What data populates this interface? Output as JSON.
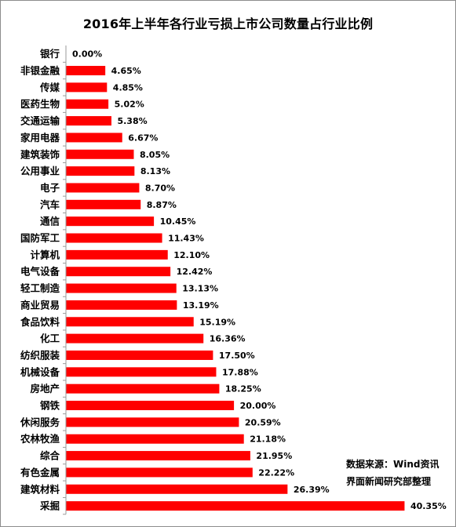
{
  "chart_data": {
    "type": "bar",
    "orientation": "horizontal",
    "title": "2016年上半年各行业亏损上市公司数量占行业比例",
    "categories": [
      "银行",
      "非银金融",
      "传媒",
      "医药生物",
      "交通运输",
      "家用电器",
      "建筑装饰",
      "公用事业",
      "电子",
      "汽车",
      "通信",
      "国防军工",
      "计算机",
      "电气设备",
      "轻工制造",
      "商业贸易",
      "食品饮料",
      "化工",
      "纺织服装",
      "机械设备",
      "房地产",
      "钢铁",
      "休闲服务",
      "农林牧渔",
      "综合",
      "有色金属",
      "建筑材料",
      "采掘"
    ],
    "values": [
      0.0,
      4.65,
      4.85,
      5.02,
      5.38,
      6.67,
      8.05,
      8.13,
      8.7,
      8.87,
      10.45,
      11.43,
      12.1,
      12.42,
      13.13,
      13.19,
      15.19,
      16.36,
      17.5,
      17.88,
      18.25,
      20.0,
      20.59,
      21.18,
      21.95,
      22.22,
      26.39,
      40.35
    ],
    "value_labels": [
      "0.00%",
      "4.65%",
      "4.85%",
      "5.02%",
      "5.38%",
      "6.67%",
      "8.05%",
      "8.13%",
      "8.70%",
      "8.87%",
      "10.45%",
      "11.43%",
      "12.10%",
      "12.42%",
      "13.13%",
      "13.19%",
      "15.19%",
      "16.36%",
      "17.50%",
      "17.88%",
      "18.25%",
      "20.00%",
      "20.59%",
      "21.18%",
      "21.95%",
      "22.22%",
      "26.39%",
      "40.35%"
    ],
    "unit": "%",
    "xlim": [
      0,
      45
    ],
    "grid": false,
    "legend": "none",
    "bar_color": "#ff0000"
  },
  "source": {
    "line1": "数据来源：Wind资讯",
    "line2": "界面新闻研究部整理"
  }
}
